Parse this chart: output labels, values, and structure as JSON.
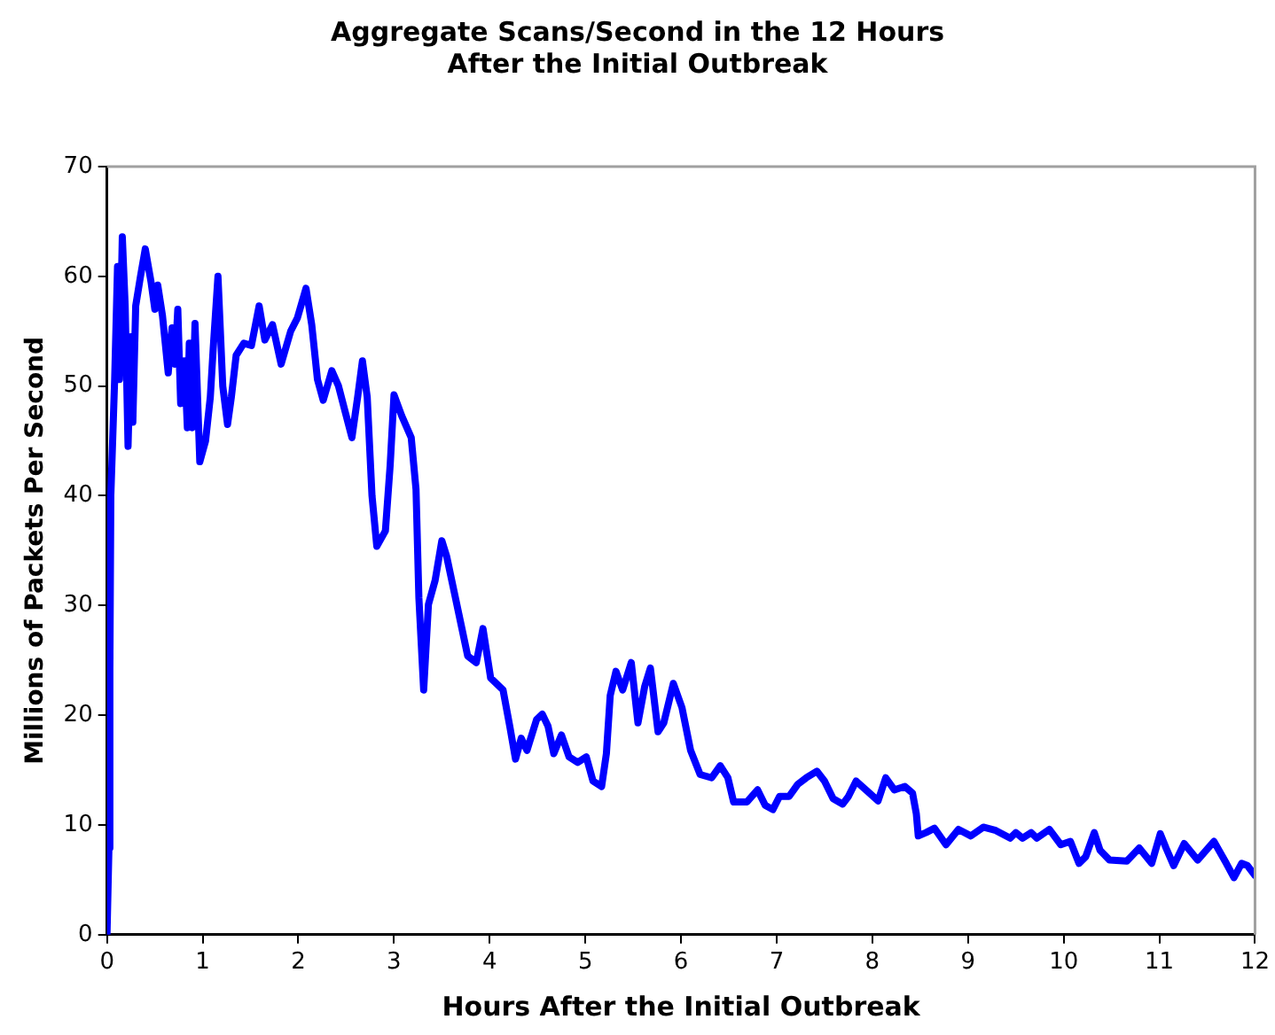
{
  "chart_data": {
    "type": "line",
    "title": [
      "Aggregate Scans/Second in the 12 Hours",
      "After the Initial Outbreak"
    ],
    "xlabel": "Hours After the Initial Outbreak",
    "ylabel": "Millions of Packets Per Second",
    "x": [
      0,
      0.02,
      0.03,
      0.04,
      0.08,
      0.11,
      0.13,
      0.16,
      0.19,
      0.22,
      0.25,
      0.27,
      0.3,
      0.35,
      0.4,
      0.46,
      0.5,
      0.53,
      0.58,
      0.64,
      0.68,
      0.71,
      0.74,
      0.77,
      0.81,
      0.84,
      0.86,
      0.89,
      0.92,
      0.97,
      1.03,
      1.08,
      1.11,
      1.16,
      1.21,
      1.26,
      1.3,
      1.35,
      1.43,
      1.51,
      1.59,
      1.65,
      1.73,
      1.82,
      1.92,
      1.99,
      2.08,
      2.14,
      2.2,
      2.26,
      2.35,
      2.42,
      2.5,
      2.56,
      2.62,
      2.67,
      2.72,
      2.77,
      2.82,
      2.91,
      2.96,
      3.0,
      3.08,
      3.18,
      3.23,
      3.26,
      3.31,
      3.36,
      3.43,
      3.5,
      3.55,
      3.63,
      3.71,
      3.77,
      3.86,
      3.93,
      4.01,
      4.14,
      4.21,
      4.27,
      4.33,
      4.39,
      4.49,
      4.55,
      4.61,
      4.67,
      4.75,
      4.83,
      4.92,
      5.01,
      5.08,
      5.17,
      5.22,
      5.26,
      5.32,
      5.39,
      5.48,
      5.55,
      5.62,
      5.68,
      5.76,
      5.82,
      5.92,
      6.01,
      6.1,
      6.2,
      6.32,
      6.41,
      6.49,
      6.55,
      6.69,
      6.8,
      6.88,
      6.96,
      7.03,
      7.13,
      7.22,
      7.31,
      7.42,
      7.5,
      7.59,
      7.69,
      7.75,
      7.83,
      7.97,
      8.06,
      8.14,
      8.23,
      8.34,
      8.42,
      8.46,
      8.48,
      8.56,
      8.65,
      8.77,
      8.9,
      9.03,
      9.16,
      9.29,
      9.44,
      9.5,
      9.57,
      9.66,
      9.72,
      9.85,
      9.97,
      10.07,
      10.16,
      10.23,
      10.32,
      10.38,
      10.48,
      10.66,
      10.79,
      10.92,
      11.01,
      11.07,
      11.15,
      11.26,
      11.4,
      11.57,
      11.7,
      11.78,
      11.86,
      11.92,
      12.0
    ],
    "series": [
      {
        "color": "#0000ff",
        "values": [
          0,
          7.9,
          24.3,
          40,
          50.6,
          60.9,
          50.6,
          63.6,
          57.3,
          44.5,
          54.5,
          46.7,
          57.3,
          60,
          62.5,
          59.5,
          57,
          59.2,
          56.4,
          51.2,
          55.3,
          52,
          57,
          48.4,
          52.3,
          46.2,
          53.9,
          46.2,
          55.7,
          43.1,
          45,
          49,
          53.4,
          60,
          50,
          46.5,
          49,
          52.8,
          53.9,
          53.7,
          57.3,
          54.2,
          55.6,
          52,
          55,
          56.2,
          58.9,
          55.6,
          50.6,
          48.7,
          51.4,
          50,
          47.3,
          45.3,
          49,
          52.3,
          49,
          40,
          35.4,
          36.8,
          42.8,
          49.2,
          47.3,
          45.3,
          40.6,
          30.7,
          22.3,
          30.1,
          32.3,
          35.9,
          34.5,
          31.2,
          27.9,
          25.4,
          24.8,
          27.9,
          23.4,
          22.3,
          19,
          16,
          17.9,
          16.8,
          19.6,
          20.1,
          19,
          16.5,
          18.2,
          16.2,
          15.7,
          16.2,
          14,
          13.5,
          16.5,
          21.8,
          24,
          22.3,
          24.8,
          19.3,
          22.6,
          24.3,
          18.5,
          19.3,
          22.9,
          20.7,
          16.8,
          14.6,
          14.3,
          15.4,
          14.3,
          12.1,
          12.1,
          13.2,
          11.8,
          11.4,
          12.6,
          12.6,
          13.7,
          14.3,
          14.9,
          14,
          12.4,
          11.9,
          12.6,
          14,
          12.9,
          12.2,
          14.3,
          13.2,
          13.5,
          12.9,
          11,
          9,
          9.3,
          9.7,
          8.2,
          9.6,
          9,
          9.8,
          9.5,
          8.8,
          9.3,
          8.8,
          9.3,
          8.8,
          9.6,
          8.2,
          8.5,
          6.5,
          7.1,
          9.3,
          7.7,
          6.8,
          6.7,
          7.9,
          6.5,
          9.2,
          7.9,
          6.3,
          8.3,
          6.8,
          8.5,
          6.5,
          5.2,
          6.5,
          6.3,
          5.4
        ]
      }
    ],
    "xlim": [
      0,
      12
    ],
    "xticks": [
      0,
      1,
      2,
      3,
      4,
      5,
      6,
      7,
      8,
      9,
      10,
      11,
      12
    ],
    "ylim": [
      0,
      70
    ],
    "yticks": [
      0,
      10,
      20,
      30,
      40,
      50,
      60,
      70
    ],
    "grid": false,
    "legend": false,
    "marker": "none",
    "line_style": "solid"
  }
}
